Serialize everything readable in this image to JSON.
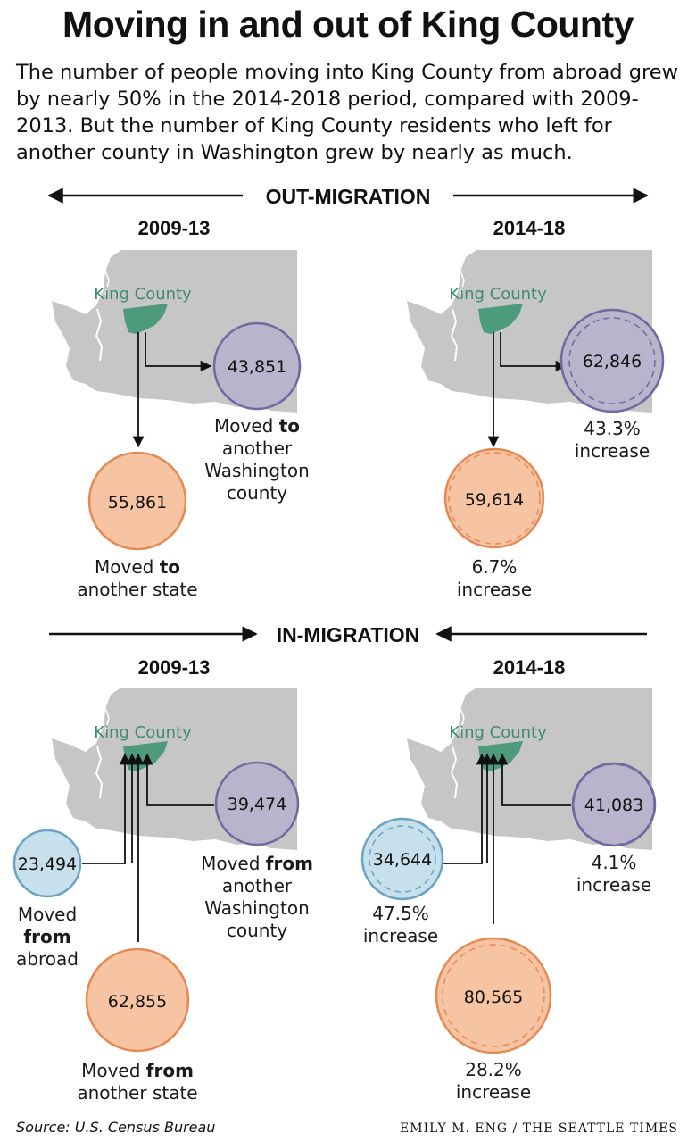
{
  "title": "Moving in and out of King County",
  "intro": "The number of people moving into King County from abroad grew by nearly 50% in the 2014-2018 period, compared with 2009-2013. But the number of King County residents who left for another county in Washington grew by nearly as much.",
  "out_migration": {
    "heading": "OUT-MIGRATION",
    "panels": [
      {
        "year": "2009-13",
        "map_label": "King County",
        "wa_county": {
          "value": "43,851",
          "label_lines": [
            "Moved |to|",
            "another",
            "Washington",
            "county"
          ]
        },
        "other_state": {
          "value": "55,861",
          "label_lines": [
            "Moved |to|",
            "another state"
          ]
        }
      },
      {
        "year": "2014-18",
        "map_label": "King County",
        "wa_county": {
          "value": "62,846",
          "label_lines": [
            "43.3%",
            "increase"
          ]
        },
        "other_state": {
          "value": "59,614",
          "label_lines": [
            "6.7%",
            "increase"
          ]
        }
      }
    ]
  },
  "in_migration": {
    "heading": "IN-MIGRATION",
    "panels": [
      {
        "year": "2009-13",
        "map_label": "King County",
        "abroad": {
          "value": "23,494",
          "label_lines": [
            "Moved",
            "|from|",
            "abroad"
          ]
        },
        "wa_county": {
          "value": "39,474",
          "label_lines": [
            "Moved |from|",
            "another",
            "Washington",
            "county"
          ]
        },
        "other_state": {
          "value": "62,855",
          "label_lines": [
            "Moved |from|",
            "another state"
          ]
        }
      },
      {
        "year": "2014-18",
        "map_label": "King County",
        "abroad": {
          "value": "34,644",
          "label_lines": [
            "47.5%",
            "increase"
          ]
        },
        "wa_county": {
          "value": "41,083",
          "label_lines": [
            "4.1%",
            "increase"
          ]
        },
        "other_state": {
          "value": "80,565",
          "label_lines": [
            "28.2%",
            "increase"
          ]
        }
      }
    ]
  },
  "colors": {
    "map": "#c6c6c6",
    "king_county": "#4e9a7c",
    "king_label": "#3f8a6e",
    "purple_fill": "#b9b3cc",
    "purple_stroke": "#6e6aa0",
    "orange_fill": "#f6c4a2",
    "orange_stroke": "#e48a55",
    "blue_fill": "#c7e0ec",
    "blue_stroke": "#6aa4c4"
  },
  "source": "Source: U.S. Census Bureau",
  "credit": "EMILY M. ENG / THE SEATTLE TIMES"
}
